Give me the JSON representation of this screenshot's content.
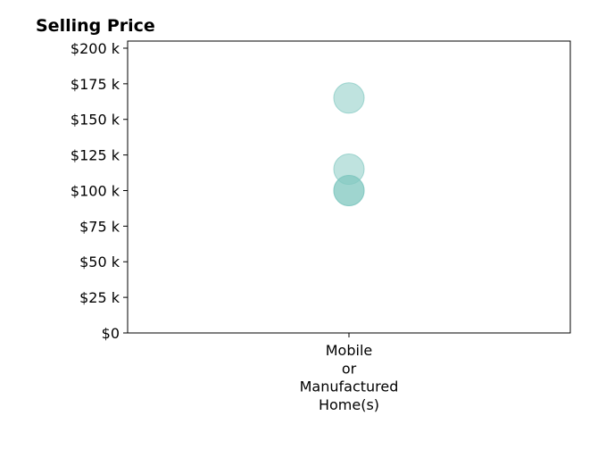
{
  "chart_data": {
    "type": "scatter",
    "title": "Selling Price",
    "xlabel": "",
    "ylabel": "",
    "categories": [
      "Mobile or Manufactured Home(s)"
    ],
    "category_label_lines": [
      [
        "Mobile",
        "or",
        "Manufactured",
        "Home(s)"
      ]
    ],
    "ylim": [
      0,
      205000
    ],
    "yticks": [
      0,
      25000,
      50000,
      75000,
      100000,
      125000,
      150000,
      175000,
      200000
    ],
    "ytick_labels": [
      "$0",
      "$25 k",
      "$50 k",
      "$75 k",
      "$100 k",
      "$125 k",
      "$150 k",
      "$175 k",
      "$200 k"
    ],
    "points": [
      {
        "category": "Mobile or Manufactured Home(s)",
        "value": 165000
      },
      {
        "category": "Mobile or Manufactured Home(s)",
        "value": 115000
      },
      {
        "category": "Mobile or Manufactured Home(s)",
        "value": 100000
      },
      {
        "category": "Mobile or Manufactured Home(s)",
        "value": 100000
      }
    ],
    "marker_color": "#80c7c0",
    "grid": false,
    "legend": "none"
  }
}
